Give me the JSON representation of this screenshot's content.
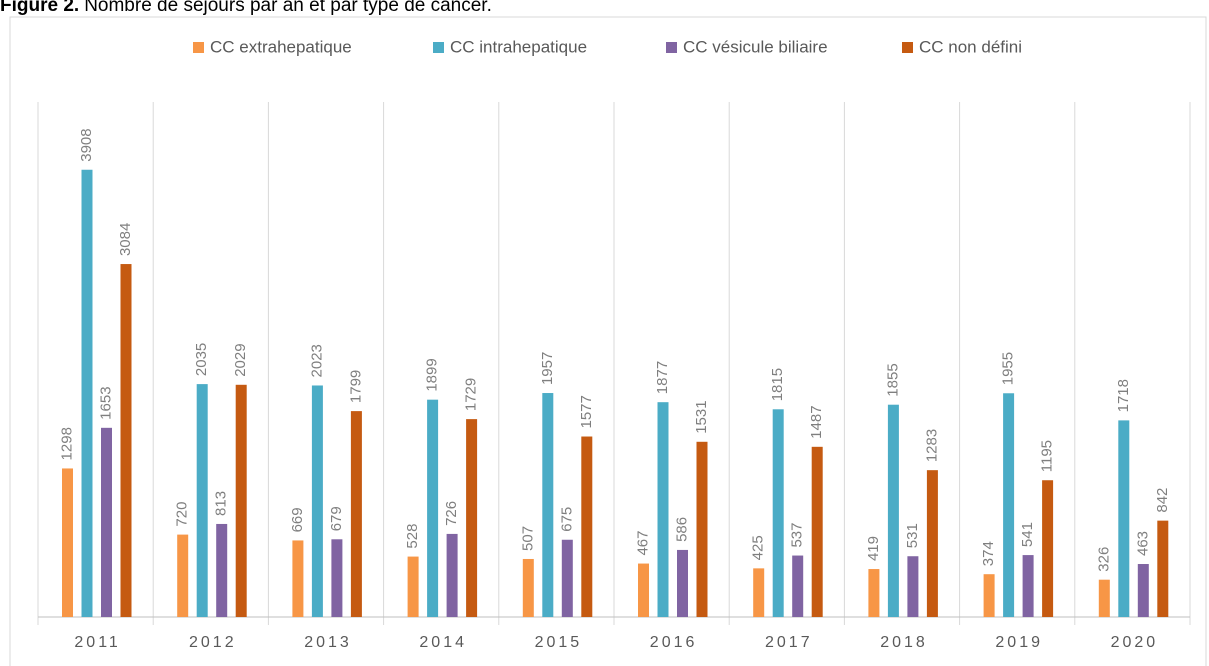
{
  "chart_data": {
    "type": "bar",
    "title_prefix": "Figure 2.",
    "title": "Nombre de séjours par an et par type de cancer.",
    "categories": [
      "2011",
      "2012",
      "2013",
      "2014",
      "2015",
      "2016",
      "2017",
      "2018",
      "2019",
      "2020"
    ],
    "series": [
      {
        "name": "CC extrahepatique",
        "color": "#f79646",
        "values": [
          1298,
          720,
          669,
          528,
          507,
          467,
          425,
          419,
          374,
          326
        ]
      },
      {
        "name": "CC intrahepatique",
        "color": "#4bacc6",
        "values": [
          3908,
          2035,
          2023,
          1899,
          1957,
          1877,
          1815,
          1855,
          1955,
          1718
        ]
      },
      {
        "name": "CC vésicule biliaire",
        "color": "#8064a2",
        "values": [
          1653,
          813,
          679,
          726,
          675,
          586,
          537,
          531,
          541,
          463
        ]
      },
      {
        "name": "CC non défini",
        "color": "#c55a11",
        "values": [
          3084,
          2029,
          1799,
          1729,
          1577,
          1531,
          1487,
          1283,
          1195,
          842
        ]
      }
    ],
    "ylim": [
      0,
      4500
    ],
    "legend": "top"
  }
}
